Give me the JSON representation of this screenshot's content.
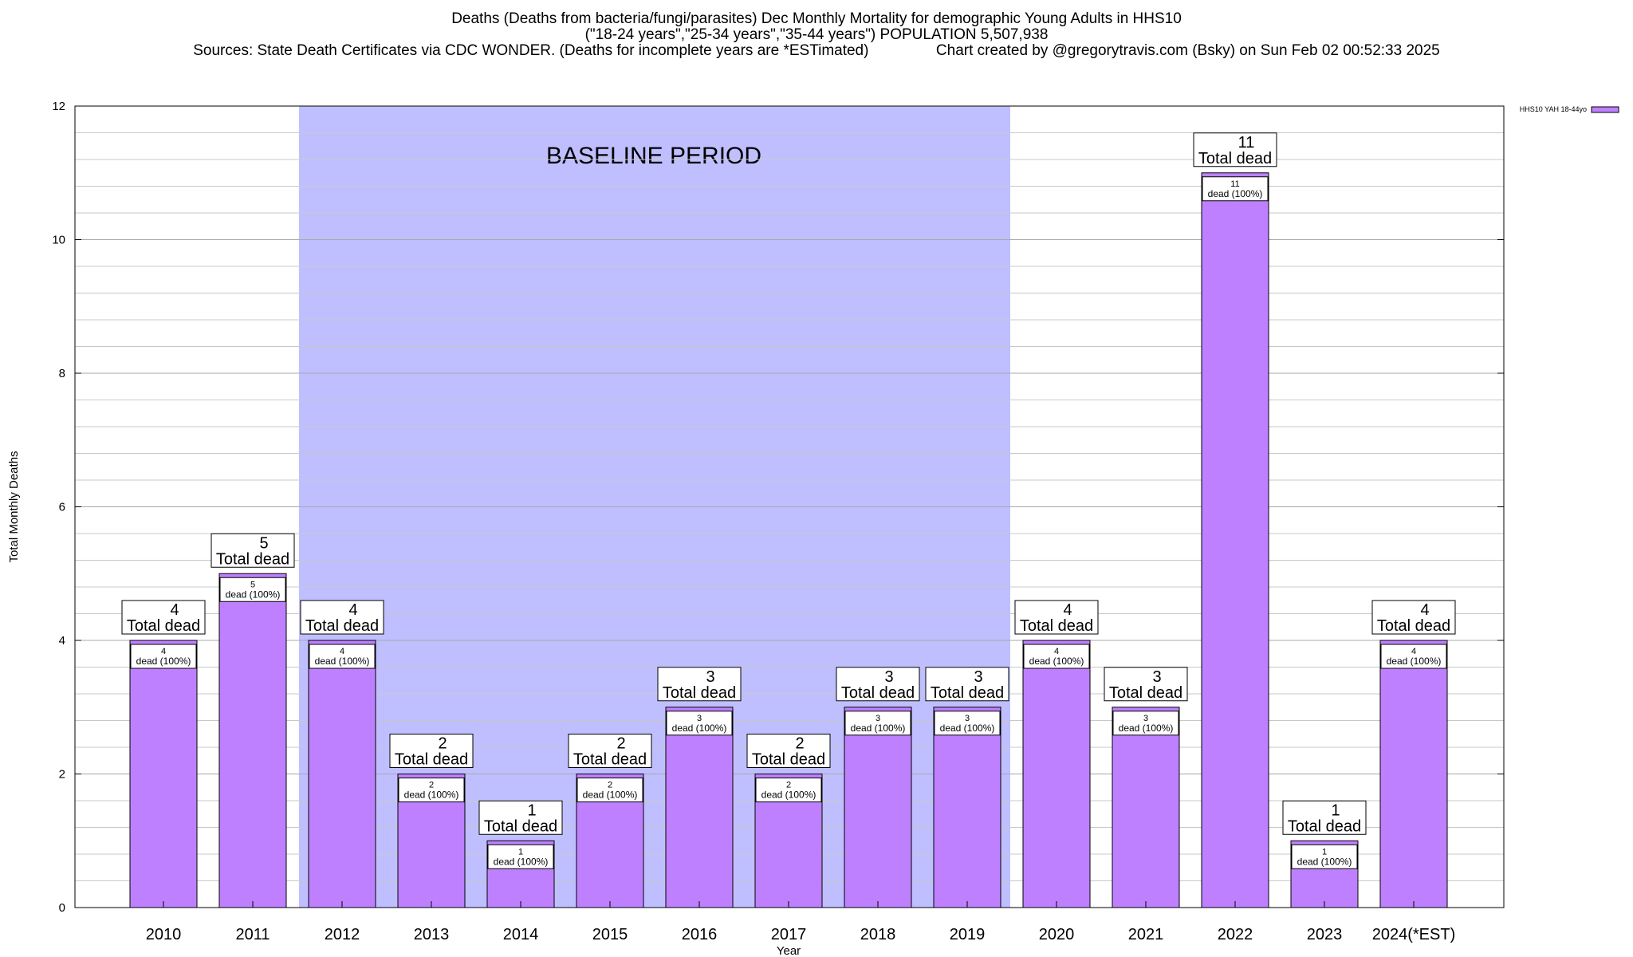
{
  "header": {
    "title_line1": "Deaths (Deaths from bacteria/fungi/parasites) Dec Monthly Mortality for demographic Young Adults in HHS10",
    "title_line2": "(\"18-24 years\",\"25-34 years\",\"35-44 years\") POPULATION 5,507,938",
    "title_line3": "Sources: State Death Certificates via CDC WONDER. (Deaths for incomplete years are *ESTimated)                Chart created by @gregorytravis.com (Bsky) on Sun Feb 02 00:52:33 2025"
  },
  "chart_data": {
    "type": "bar",
    "xlabel": "Year",
    "ylabel": "Total Monthly Deaths",
    "ylim": [
      0,
      12
    ],
    "yticks": [
      0,
      2,
      4,
      6,
      8,
      10,
      12
    ],
    "grid": true,
    "legend_position": "top-right",
    "categories": [
      "2010",
      "2011",
      "2012",
      "2013",
      "2014",
      "2015",
      "2016",
      "2017",
      "2018",
      "2019",
      "2020",
      "2021",
      "2022",
      "2023",
      "2024(*EST)"
    ],
    "series": [
      {
        "name": "HHS10 YAH 18-44yo",
        "color": "#bf80ff",
        "values": [
          4,
          5,
          4,
          2,
          1,
          2,
          3,
          2,
          3,
          3,
          4,
          3,
          11,
          1,
          4
        ]
      }
    ],
    "total_label": "Total dead",
    "inner_label": "dead (100%)",
    "baseline": {
      "label": "BASELINE PERIOD",
      "start_category": "2012",
      "end_category": "2019",
      "color": "#bfbfff"
    }
  }
}
